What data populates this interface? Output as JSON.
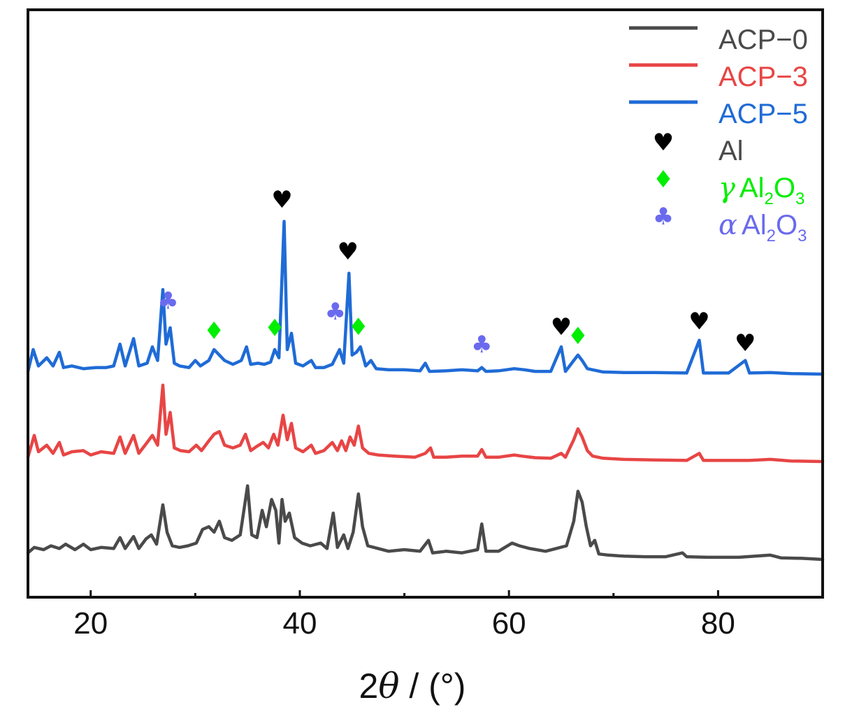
{
  "chart_data": {
    "type": "line",
    "title": "",
    "xlabel": "2θ / (°)",
    "xlabel_parts": {
      "prefix": "2",
      "theta": "θ",
      "suffix": " / (°)"
    },
    "ylabel": "",
    "xlim": [
      14,
      90
    ],
    "y_axis_ticks_shown": false,
    "x_ticks": [
      20,
      40,
      60,
      80
    ],
    "x_tick_labels": [
      "20",
      "40",
      "60",
      "80"
    ],
    "grid": false,
    "legend_position": "top-right",
    "series": [
      {
        "name": "ACP−0",
        "color": "#4a4a4a",
        "baseline": 0,
        "points": [
          [
            14,
            0.12
          ],
          [
            14.6,
            0.22
          ],
          [
            15.5,
            0.18
          ],
          [
            16.2,
            0.25
          ],
          [
            17,
            0.2
          ],
          [
            17.6,
            0.28
          ],
          [
            18.5,
            0.18
          ],
          [
            19.3,
            0.28
          ],
          [
            20,
            0.18
          ],
          [
            21,
            0.22
          ],
          [
            22.2,
            0.2
          ],
          [
            22.8,
            0.4
          ],
          [
            23.3,
            0.2
          ],
          [
            24.1,
            0.42
          ],
          [
            24.6,
            0.2
          ],
          [
            25.3,
            0.38
          ],
          [
            25.8,
            0.45
          ],
          [
            26.3,
            0.28
          ],
          [
            26.9,
            1.0
          ],
          [
            27.3,
            0.5
          ],
          [
            27.8,
            0.25
          ],
          [
            28.5,
            0.22
          ],
          [
            29.3,
            0.25
          ],
          [
            30.1,
            0.3
          ],
          [
            30.7,
            0.55
          ],
          [
            31.3,
            0.6
          ],
          [
            31.8,
            0.5
          ],
          [
            32.3,
            0.7
          ],
          [
            32.8,
            0.4
          ],
          [
            33.5,
            0.35
          ],
          [
            34.3,
            0.45
          ],
          [
            35,
            1.35
          ],
          [
            35.4,
            0.45
          ],
          [
            35.9,
            0.4
          ],
          [
            36.4,
            0.9
          ],
          [
            36.8,
            0.6
          ],
          [
            37.3,
            1.1
          ],
          [
            37.7,
            0.9
          ],
          [
            38,
            0.3
          ],
          [
            38.3,
            1.1
          ],
          [
            38.6,
            0.7
          ],
          [
            39,
            0.85
          ],
          [
            39.5,
            0.4
          ],
          [
            40.2,
            0.3
          ],
          [
            41,
            0.25
          ],
          [
            42,
            0.3
          ],
          [
            42.6,
            0.2
          ],
          [
            43.2,
            0.85
          ],
          [
            43.6,
            0.22
          ],
          [
            44.2,
            0.45
          ],
          [
            44.6,
            0.2
          ],
          [
            45.1,
            0.5
          ],
          [
            45.6,
            1.2
          ],
          [
            46,
            0.6
          ],
          [
            46.5,
            0.25
          ],
          [
            47.5,
            0.2
          ],
          [
            48.5,
            0.15
          ],
          [
            50,
            0.18
          ],
          [
            51.5,
            0.15
          ],
          [
            52.3,
            0.35
          ],
          [
            52.7,
            0.12
          ],
          [
            54,
            0.15
          ],
          [
            55.5,
            0.12
          ],
          [
            57,
            0.18
          ],
          [
            57.4,
            0.65
          ],
          [
            57.8,
            0.15
          ],
          [
            59,
            0.15
          ],
          [
            60.3,
            0.3
          ],
          [
            61,
            0.25
          ],
          [
            62,
            0.2
          ],
          [
            63.5,
            0.15
          ],
          [
            64.5,
            0.2
          ],
          [
            65.5,
            0.25
          ],
          [
            66.2,
            0.7
          ],
          [
            66.6,
            1.25
          ],
          [
            67,
            1.05
          ],
          [
            67.4,
            0.6
          ],
          [
            67.8,
            0.25
          ],
          [
            68.2,
            0.35
          ],
          [
            68.6,
            0.1
          ],
          [
            69.5,
            0.08
          ],
          [
            71,
            0.06
          ],
          [
            73,
            0.05
          ],
          [
            75,
            0.05
          ],
          [
            76.6,
            0.12
          ],
          [
            77,
            0.05
          ],
          [
            79,
            0.04
          ],
          [
            82,
            0.04
          ],
          [
            85,
            0.08
          ],
          [
            86,
            0.03
          ],
          [
            88,
            0.02
          ],
          [
            90,
            0.0
          ]
        ]
      },
      {
        "name": "ACP−3",
        "color": "#e84545",
        "baseline": 1,
        "points": [
          [
            14,
            0.08
          ],
          [
            14.6,
            0.48
          ],
          [
            15,
            0.18
          ],
          [
            15.8,
            0.3
          ],
          [
            16.4,
            0.15
          ],
          [
            17,
            0.35
          ],
          [
            17.4,
            0.12
          ],
          [
            18.2,
            0.18
          ],
          [
            19.3,
            0.2
          ],
          [
            20,
            0.12
          ],
          [
            21,
            0.18
          ],
          [
            22.2,
            0.15
          ],
          [
            22.8,
            0.45
          ],
          [
            23.3,
            0.15
          ],
          [
            24.1,
            0.48
          ],
          [
            24.6,
            0.15
          ],
          [
            25.4,
            0.35
          ],
          [
            25.9,
            0.48
          ],
          [
            26.4,
            0.3
          ],
          [
            26.9,
            1.4
          ],
          [
            27.2,
            0.5
          ],
          [
            27.6,
            0.9
          ],
          [
            28,
            0.25
          ],
          [
            28.6,
            0.2
          ],
          [
            29.4,
            0.18
          ],
          [
            30.1,
            0.3
          ],
          [
            30.6,
            0.2
          ],
          [
            31.3,
            0.38
          ],
          [
            31.8,
            0.5
          ],
          [
            32.3,
            0.55
          ],
          [
            32.8,
            0.3
          ],
          [
            33.6,
            0.25
          ],
          [
            34.3,
            0.3
          ],
          [
            34.8,
            0.5
          ],
          [
            35.3,
            0.2
          ],
          [
            35.9,
            0.28
          ],
          [
            36.5,
            0.35
          ],
          [
            37,
            0.25
          ],
          [
            37.5,
            0.5
          ],
          [
            37.9,
            0.3
          ],
          [
            38.4,
            0.85
          ],
          [
            38.8,
            0.4
          ],
          [
            39.2,
            0.7
          ],
          [
            39.6,
            0.25
          ],
          [
            40.3,
            0.18
          ],
          [
            41.1,
            0.3
          ],
          [
            41.5,
            0.15
          ],
          [
            42.3,
            0.2
          ],
          [
            43.1,
            0.35
          ],
          [
            43.6,
            0.2
          ],
          [
            44,
            0.38
          ],
          [
            44.4,
            0.2
          ],
          [
            44.8,
            0.45
          ],
          [
            45.2,
            0.3
          ],
          [
            45.6,
            0.65
          ],
          [
            46,
            0.25
          ],
          [
            46.6,
            0.15
          ],
          [
            47.5,
            0.12
          ],
          [
            49,
            0.1
          ],
          [
            51,
            0.08
          ],
          [
            52,
            0.15
          ],
          [
            52.5,
            0.25
          ],
          [
            52.8,
            0.08
          ],
          [
            54,
            0.08
          ],
          [
            55.5,
            0.1
          ],
          [
            57,
            0.1
          ],
          [
            57.4,
            0.22
          ],
          [
            57.8,
            0.08
          ],
          [
            59,
            0.08
          ],
          [
            60.5,
            0.12
          ],
          [
            61.2,
            0.1
          ],
          [
            62.5,
            0.07
          ],
          [
            64,
            0.06
          ],
          [
            65,
            0.15
          ],
          [
            65.4,
            0.08
          ],
          [
            66.2,
            0.4
          ],
          [
            66.6,
            0.6
          ],
          [
            67,
            0.45
          ],
          [
            67.5,
            0.2
          ],
          [
            68,
            0.1
          ],
          [
            69,
            0.06
          ],
          [
            71,
            0.04
          ],
          [
            74,
            0.03
          ],
          [
            77,
            0.02
          ],
          [
            78.2,
            0.15
          ],
          [
            78.6,
            0.02
          ],
          [
            81,
            0.02
          ],
          [
            83,
            0.02
          ],
          [
            85,
            0.04
          ],
          [
            87,
            0.01
          ],
          [
            90,
            0.0
          ]
        ]
      },
      {
        "name": "ACP−5",
        "color": "#1f6bd6",
        "baseline": 2,
        "points": [
          [
            14,
            0.05
          ],
          [
            14.5,
            0.45
          ],
          [
            15,
            0.15
          ],
          [
            15.8,
            0.3
          ],
          [
            16.4,
            0.15
          ],
          [
            17,
            0.4
          ],
          [
            17.4,
            0.12
          ],
          [
            18.2,
            0.15
          ],
          [
            19.3,
            0.1
          ],
          [
            20.5,
            0.12
          ],
          [
            21.5,
            0.12
          ],
          [
            22.2,
            0.15
          ],
          [
            22.8,
            0.55
          ],
          [
            23.3,
            0.15
          ],
          [
            24.1,
            0.65
          ],
          [
            24.6,
            0.15
          ],
          [
            25.4,
            0.2
          ],
          [
            25.9,
            0.5
          ],
          [
            26.4,
            0.25
          ],
          [
            26.9,
            1.55
          ],
          [
            27.2,
            0.55
          ],
          [
            27.6,
            0.85
          ],
          [
            28,
            0.2
          ],
          [
            28.5,
            0.15
          ],
          [
            29.4,
            0.12
          ],
          [
            30,
            0.25
          ],
          [
            30.5,
            0.15
          ],
          [
            31.3,
            0.25
          ],
          [
            31.8,
            0.45
          ],
          [
            32.3,
            0.35
          ],
          [
            32.8,
            0.25
          ],
          [
            33.6,
            0.18
          ],
          [
            34.4,
            0.25
          ],
          [
            34.9,
            0.5
          ],
          [
            35.3,
            0.18
          ],
          [
            36,
            0.2
          ],
          [
            36.6,
            0.18
          ],
          [
            37.2,
            0.22
          ],
          [
            37.6,
            0.45
          ],
          [
            38,
            0.3
          ],
          [
            38.5,
            2.8
          ],
          [
            38.8,
            0.45
          ],
          [
            39.2,
            0.75
          ],
          [
            39.6,
            0.2
          ],
          [
            40.3,
            0.15
          ],
          [
            41.1,
            0.25
          ],
          [
            41.5,
            0.12
          ],
          [
            42.3,
            0.12
          ],
          [
            43.1,
            0.18
          ],
          [
            43.8,
            0.45
          ],
          [
            44.2,
            0.2
          ],
          [
            44.7,
            1.85
          ],
          [
            45,
            0.35
          ],
          [
            45.4,
            0.4
          ],
          [
            45.8,
            0.5
          ],
          [
            46.3,
            0.15
          ],
          [
            46.8,
            0.25
          ],
          [
            47.3,
            0.1
          ],
          [
            48.5,
            0.08
          ],
          [
            50,
            0.08
          ],
          [
            51.5,
            0.06
          ],
          [
            52,
            0.2
          ],
          [
            52.4,
            0.05
          ],
          [
            54,
            0.06
          ],
          [
            55.5,
            0.08
          ],
          [
            57,
            0.06
          ],
          [
            57.4,
            0.12
          ],
          [
            57.8,
            0.05
          ],
          [
            59,
            0.06
          ],
          [
            60.5,
            0.1
          ],
          [
            61.5,
            0.08
          ],
          [
            62.5,
            0.05
          ],
          [
            64,
            0.05
          ],
          [
            65,
            0.5
          ],
          [
            65.4,
            0.05
          ],
          [
            66.2,
            0.25
          ],
          [
            66.6,
            0.35
          ],
          [
            67,
            0.25
          ],
          [
            67.5,
            0.1
          ],
          [
            68,
            0.08
          ],
          [
            69,
            0.04
          ],
          [
            71,
            0.03
          ],
          [
            74,
            0.03
          ],
          [
            77,
            0.02
          ],
          [
            78.2,
            0.62
          ],
          [
            78.6,
            0.02
          ],
          [
            81,
            0.02
          ],
          [
            82.6,
            0.25
          ],
          [
            83,
            0.02
          ],
          [
            85,
            0.03
          ],
          [
            87,
            0.01
          ],
          [
            90,
            0.0
          ]
        ]
      }
    ],
    "markers": [
      {
        "symbol": "♥",
        "color": "#000000",
        "x": 38.3,
        "series_index": 2,
        "y": 3.05
      },
      {
        "symbol": "♥",
        "color": "#000000",
        "x": 44.6,
        "series_index": 2,
        "y": 2.1
      },
      {
        "symbol": "♥",
        "color": "#000000",
        "x": 65.0,
        "series_index": 2,
        "y": 0.72
      },
      {
        "symbol": "♥",
        "color": "#000000",
        "x": 78.2,
        "series_index": 2,
        "y": 0.82
      },
      {
        "symbol": "♥",
        "color": "#000000",
        "x": 82.6,
        "series_index": 2,
        "y": 0.42
      },
      {
        "symbol": "♦",
        "color": "#00ee00",
        "x": 31.8,
        "series_index": 2,
        "y": 0.65
      },
      {
        "symbol": "♦",
        "color": "#00ee00",
        "x": 37.6,
        "series_index": 2,
        "y": 0.7
      },
      {
        "symbol": "♦",
        "color": "#00ee00",
        "x": 45.6,
        "series_index": 2,
        "y": 0.72
      },
      {
        "symbol": "♦",
        "color": "#00ee00",
        "x": 66.6,
        "series_index": 2,
        "y": 0.55
      },
      {
        "symbol": "♣",
        "color": "#6a6aee",
        "x": 27.4,
        "series_index": 2,
        "y": 1.2
      },
      {
        "symbol": "♣",
        "color": "#6a6aee",
        "x": 43.4,
        "series_index": 2,
        "y": 1.0
      },
      {
        "symbol": "♣",
        "color": "#6a6aee",
        "x": 57.4,
        "series_index": 2,
        "y": 0.4
      }
    ],
    "legend": [
      {
        "type": "line",
        "color": "#4a4a4a",
        "label": "ACP−0"
      },
      {
        "type": "line",
        "color": "#e84545",
        "label": "ACP−3"
      },
      {
        "type": "line",
        "color": "#1f6bd6",
        "label": "ACP−5"
      },
      {
        "type": "symbol",
        "symbol": "♥",
        "color": "#000000",
        "text_color": "#4a4a4a",
        "label": "Al"
      },
      {
        "type": "symbol",
        "symbol": "♦",
        "color": "#00ee00",
        "text_color": "#00ee00",
        "greek": "γ",
        "main": "Al",
        "sub1": "2",
        "mid": "O",
        "sub2": "3"
      },
      {
        "type": "symbol",
        "symbol": "♣",
        "color": "#6a6aee",
        "text_color": "#6a6aee",
        "greek": "α",
        "main": "Al",
        "sub1": "2",
        "mid": "O",
        "sub2": "3"
      }
    ]
  }
}
